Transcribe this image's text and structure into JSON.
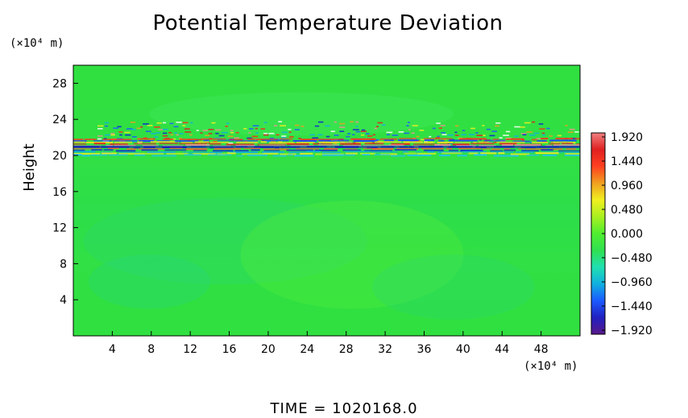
{
  "chart_data": {
    "type": "heatmap",
    "title": "Potential Temperature Deviation",
    "ylabel": "Height",
    "y_unit": "(×10⁴ m)",
    "x_unit": "(×10⁴ m)",
    "footer": "TIME  =  1020168.0",
    "x_ticks": [
      "4",
      "8",
      "12",
      "16",
      "20",
      "24",
      "28",
      "32",
      "36",
      "40",
      "44",
      "48"
    ],
    "x_tick_values": [
      4,
      8,
      12,
      16,
      20,
      24,
      28,
      32,
      36,
      40,
      44,
      48
    ],
    "xlim": [
      0,
      52
    ],
    "y_ticks": [
      "4",
      "8",
      "12",
      "16",
      "20",
      "24",
      "28"
    ],
    "y_tick_values": [
      4,
      8,
      12,
      16,
      20,
      24,
      28
    ],
    "ylim": [
      0,
      30
    ],
    "colorbar_labels": [
      "1.920",
      "1.440",
      "0.960",
      "0.480",
      "0.000",
      "−0.480",
      "−0.960",
      "−1.440",
      "−1.920"
    ],
    "colorbar_range": [
      -1.92,
      1.92
    ],
    "colorbar_colors": [
      "#5a1a8a",
      "#2020c0",
      "#1a5aff",
      "#10b0e0",
      "#20e0b0",
      "#30e050",
      "#50ee30",
      "#a8f020",
      "#f0f020",
      "#f0a020",
      "#ff4020",
      "#e02020",
      "#f08080"
    ],
    "background_color": "#30e040",
    "band_center_height": 21
  }
}
